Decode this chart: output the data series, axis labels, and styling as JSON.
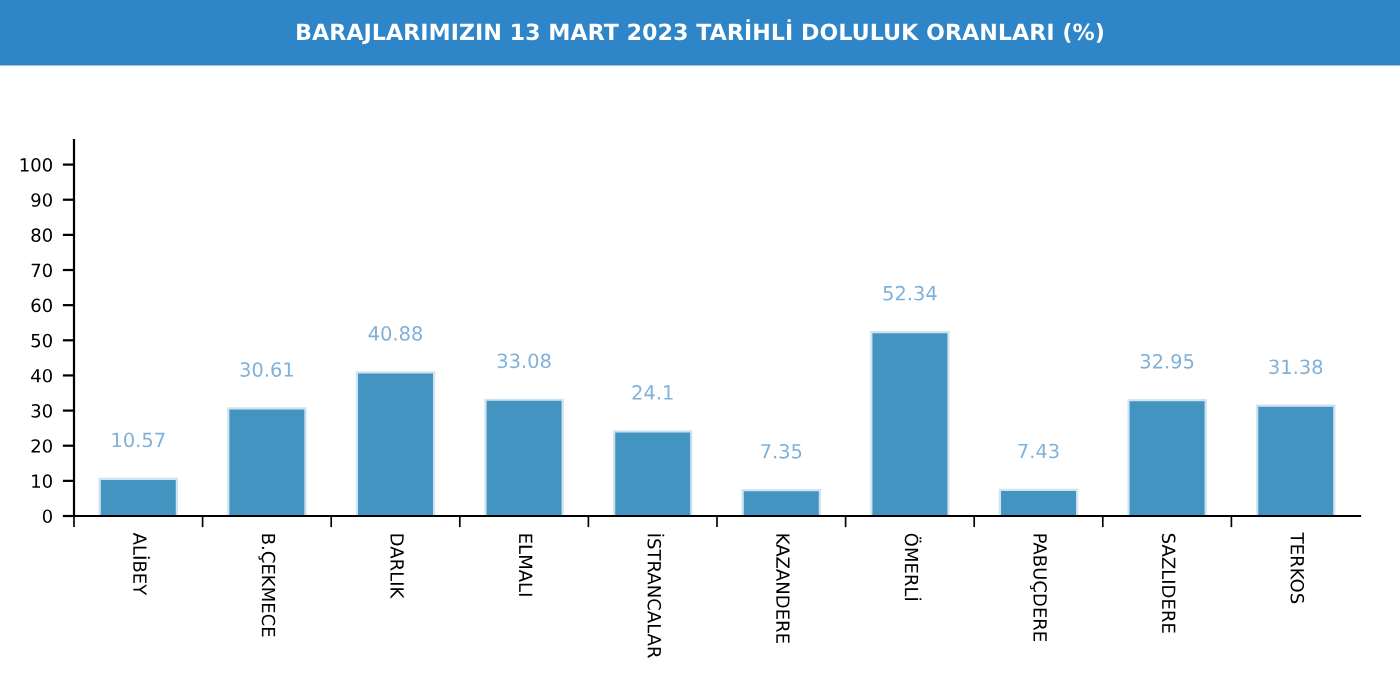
{
  "chart_data": {
    "type": "bar",
    "title": "BARAJLARIMIZIN 13 MART 2023 TARİHLİ DOLULUK ORANLARI (%)",
    "categories": [
      "ALİBEY",
      "B.ÇEKMECE",
      "DARLIK",
      "ELMALI",
      "İSTRANCALAR",
      "KAZANDERE",
      "ÖMERLİ",
      "PABUÇDERE",
      "SAZLIDERE",
      "TERKOS"
    ],
    "values": [
      10.57,
      30.61,
      40.88,
      33.08,
      24.1,
      7.35,
      52.34,
      7.43,
      32.95,
      31.38
    ],
    "color": "#4394c1",
    "ylim": [
      0,
      107
    ],
    "yticks": [
      0,
      10,
      20,
      30,
      40,
      50,
      60,
      70,
      80,
      90,
      100
    ],
    "grid": false,
    "data_labels": true
  }
}
